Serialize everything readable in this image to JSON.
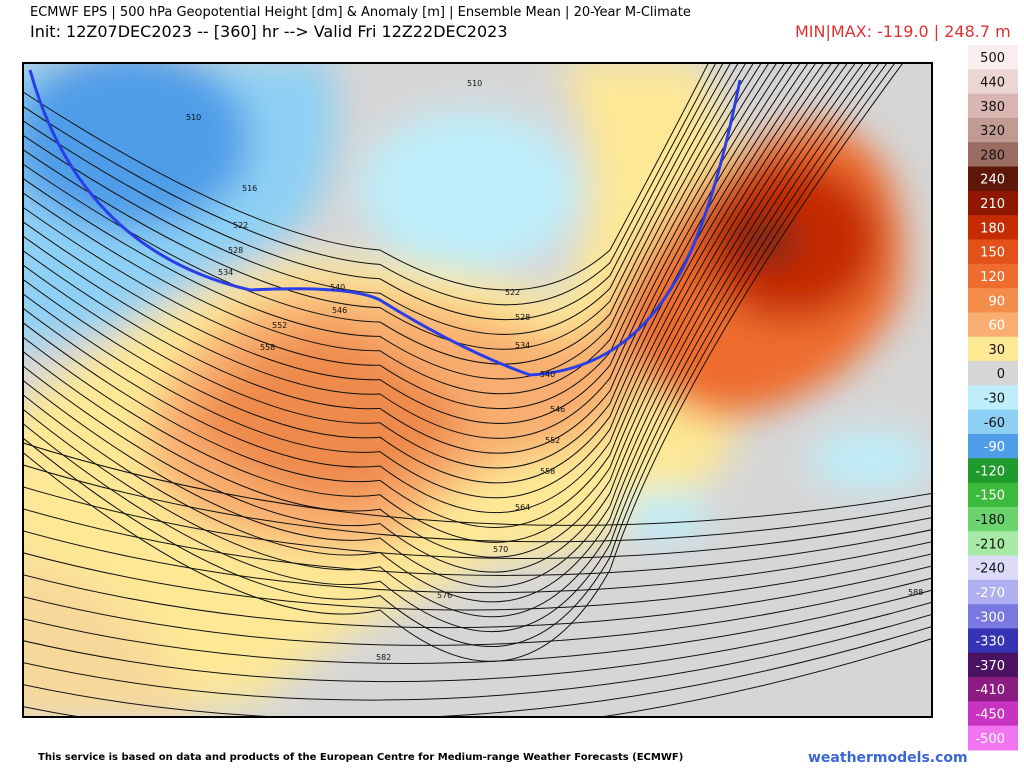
{
  "header": {
    "title": "ECMWF EPS | 500 hPa Geopotential Height [dm] & Anomaly [m] | Ensemble Mean | 20-Year M-Climate",
    "init": "Init: 12Z07DEC2023 -- [360] hr --> Valid Fri 12Z22DEC2023",
    "minmax": "MIN|MAX: -119.0 | 248.7 m"
  },
  "colorbar": {
    "labels": [
      500,
      440,
      380,
      320,
      280,
      240,
      210,
      180,
      150,
      120,
      90,
      60,
      30,
      0,
      -30,
      -60,
      -90,
      -120,
      -150,
      -180,
      -210,
      -240,
      -270,
      -300,
      -330,
      -370,
      -410,
      -450,
      -500
    ],
    "colors": [
      "#fbeeee",
      "#ecd6d3",
      "#d9b6b1",
      "#c09a93",
      "#9a6c62",
      "#5e1608",
      "#8e1800",
      "#c52c04",
      "#e2511a",
      "#ee6d2e",
      "#f48c4c",
      "#f8ae70",
      "#fde896",
      "#d6d6d6",
      "#bdeefa",
      "#8ed0f4",
      "#4f9de8",
      "#1f9a2c",
      "#3cba3c",
      "#6cd46c",
      "#a6eaa6",
      "#dcdcf8",
      "#b0b0f0",
      "#7878e0",
      "#3434b4",
      "#4c1262",
      "#8c1c82",
      "#c834c2",
      "#f274f0"
    ]
  },
  "map": {
    "contour_labels": [
      "510",
      "510",
      "516",
      "522",
      "528",
      "534",
      "540",
      "546",
      "552",
      "558",
      "522",
      "528",
      "534",
      "540",
      "546",
      "552",
      "558",
      "564",
      "570",
      "576",
      "582",
      "588"
    ]
  },
  "footer": {
    "notice": "This service is based on data and products of the European Centre for Medium-range Weather Forecasts (ECMWF)",
    "site": "weathermodels.com"
  }
}
